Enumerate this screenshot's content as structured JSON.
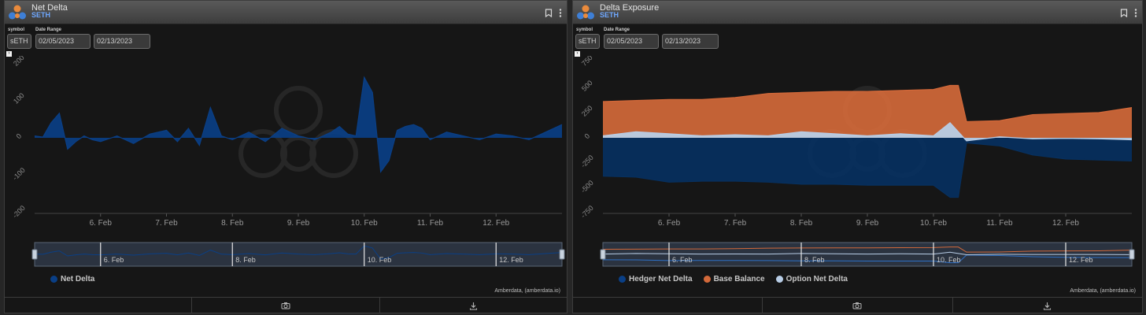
{
  "panels": [
    {
      "title": "Net Delta",
      "subtitle": "SETH",
      "symbol_label": "symbol",
      "symbol_value": "sETH",
      "date_label": "Date Range",
      "date_from": "02/05/2023",
      "date_to": "02/13/2023",
      "credit": "Amberdata, (amberdata.io)",
      "chart_data": {
        "type": "area",
        "x_unit": "date",
        "x_range": [
          "2023-02-05",
          "2023-02-13"
        ],
        "x_ticks": [
          "6. Feb",
          "7. Feb",
          "8. Feb",
          "9. Feb",
          "10. Feb",
          "11. Feb",
          "12. Feb"
        ],
        "ylim": [
          -200,
          200
        ],
        "y_ticks": [
          200,
          100,
          0,
          -100,
          -200
        ],
        "grid": false,
        "legend": "bottom-left",
        "navigator_ticks": [
          "6. Feb",
          "8. Feb",
          "10. Feb",
          "12. Feb"
        ],
        "series": [
          {
            "name": "Net Delta",
            "color": "#0a3f86",
            "x": [
              "2023-02-05 00:00",
              "2023-02-05 03:00",
              "2023-02-05 06:00",
              "2023-02-05 09:00",
              "2023-02-05 12:00",
              "2023-02-05 15:00",
              "2023-02-05 18:00",
              "2023-02-05 21:00",
              "2023-02-06 00:00",
              "2023-02-06 06:00",
              "2023-02-06 12:00",
              "2023-02-06 18:00",
              "2023-02-07 00:00",
              "2023-02-07 04:00",
              "2023-02-07 08:00",
              "2023-02-07 12:00",
              "2023-02-07 16:00",
              "2023-02-07 20:00",
              "2023-02-08 00:00",
              "2023-02-08 06:00",
              "2023-02-08 12:00",
              "2023-02-08 18:00",
              "2023-02-09 00:00",
              "2023-02-09 06:00",
              "2023-02-09 12:00",
              "2023-02-09 15:00",
              "2023-02-09 18:00",
              "2023-02-09 21:00",
              "2023-02-10 00:00",
              "2023-02-10 03:00",
              "2023-02-10 06:00",
              "2023-02-10 09:00",
              "2023-02-10 12:00",
              "2023-02-10 15:00",
              "2023-02-10 18:00",
              "2023-02-10 21:00",
              "2023-02-11 00:00",
              "2023-02-11 06:00",
              "2023-02-11 12:00",
              "2023-02-11 18:00",
              "2023-02-12 00:00",
              "2023-02-12 06:00",
              "2023-02-12 12:00",
              "2023-02-12 18:00",
              "2023-02-13 00:00"
            ],
            "y": [
              5,
              2,
              40,
              65,
              -30,
              -10,
              5,
              -5,
              -10,
              5,
              -15,
              10,
              20,
              -10,
              25,
              -20,
              80,
              5,
              -5,
              15,
              -10,
              25,
              5,
              -5,
              15,
              30,
              10,
              5,
              160,
              120,
              -90,
              -60,
              20,
              30,
              35,
              25,
              -5,
              15,
              5,
              -5,
              10,
              5,
              -5,
              15,
              35
            ]
          }
        ]
      }
    },
    {
      "title": "Delta Exposure",
      "subtitle": "SETH",
      "symbol_label": "symbol",
      "symbol_value": "sETH",
      "date_label": "Date Range",
      "date_from": "02/05/2023",
      "date_to": "02/13/2023",
      "credit": "Amberdata, (amberdata.io)",
      "chart_data": {
        "type": "area",
        "x_unit": "date",
        "x_range": [
          "2023-02-05",
          "2023-02-13"
        ],
        "x_ticks": [
          "6. Feb",
          "7. Feb",
          "8. Feb",
          "9. Feb",
          "10. Feb",
          "11. Feb",
          "12. Feb"
        ],
        "ylim": [
          -750,
          750
        ],
        "y_ticks": [
          750,
          500,
          250,
          0,
          -250,
          -500,
          -750
        ],
        "grid": false,
        "legend": "bottom-left",
        "navigator_ticks": [
          "6. Feb",
          "8. Feb",
          "10. Feb",
          "12. Feb"
        ],
        "series": [
          {
            "name": "Hedger Net Delta",
            "color": "#07305f",
            "x": [
              "2023-02-05 00:00",
              "2023-02-05 12:00",
              "2023-02-06 00:00",
              "2023-02-06 12:00",
              "2023-02-07 00:00",
              "2023-02-07 12:00",
              "2023-02-08 00:00",
              "2023-02-08 12:00",
              "2023-02-09 00:00",
              "2023-02-09 12:00",
              "2023-02-10 00:00",
              "2023-02-10 06:00",
              "2023-02-10 09:00",
              "2023-02-10 12:00",
              "2023-02-11 00:00",
              "2023-02-11 12:00",
              "2023-02-12 00:00",
              "2023-02-12 12:00",
              "2023-02-13 00:00"
            ],
            "y": [
              -380,
              -390,
              -440,
              -430,
              -430,
              -440,
              -460,
              -460,
              -470,
              -470,
              -470,
              -590,
              -590,
              -50,
              -80,
              -170,
              -210,
              -220,
              -230
            ]
          },
          {
            "name": "Base Balance",
            "color": "#d3693a",
            "x": [
              "2023-02-05 00:00",
              "2023-02-05 12:00",
              "2023-02-06 00:00",
              "2023-02-06 12:00",
              "2023-02-07 00:00",
              "2023-02-07 12:00",
              "2023-02-08 00:00",
              "2023-02-08 12:00",
              "2023-02-09 00:00",
              "2023-02-09 12:00",
              "2023-02-10 00:00",
              "2023-02-10 06:00",
              "2023-02-10 09:00",
              "2023-02-10 12:00",
              "2023-02-11 00:00",
              "2023-02-11 12:00",
              "2023-02-12 00:00",
              "2023-02-12 12:00",
              "2023-02-13 00:00"
            ],
            "y": [
              360,
              370,
              380,
              380,
              400,
              440,
              450,
              460,
              460,
              470,
              480,
              520,
              520,
              160,
              170,
              230,
              240,
              250,
              300
            ]
          },
          {
            "name": "Option Net Delta",
            "color": "#b8cde6",
            "x": [
              "2023-02-05 00:00",
              "2023-02-05 12:00",
              "2023-02-06 00:00",
              "2023-02-06 12:00",
              "2023-02-07 00:00",
              "2023-02-07 12:00",
              "2023-02-08 00:00",
              "2023-02-08 12:00",
              "2023-02-09 00:00",
              "2023-02-09 12:00",
              "2023-02-10 00:00",
              "2023-02-10 06:00",
              "2023-02-10 09:00",
              "2023-02-10 12:00",
              "2023-02-11 00:00",
              "2023-02-11 12:00",
              "2023-02-12 00:00",
              "2023-02-12 12:00",
              "2023-02-13 00:00"
            ],
            "y": [
              20,
              60,
              40,
              20,
              30,
              20,
              60,
              40,
              20,
              40,
              20,
              150,
              60,
              -30,
              10,
              -10,
              -5,
              -10,
              -20
            ]
          }
        ]
      }
    }
  ]
}
